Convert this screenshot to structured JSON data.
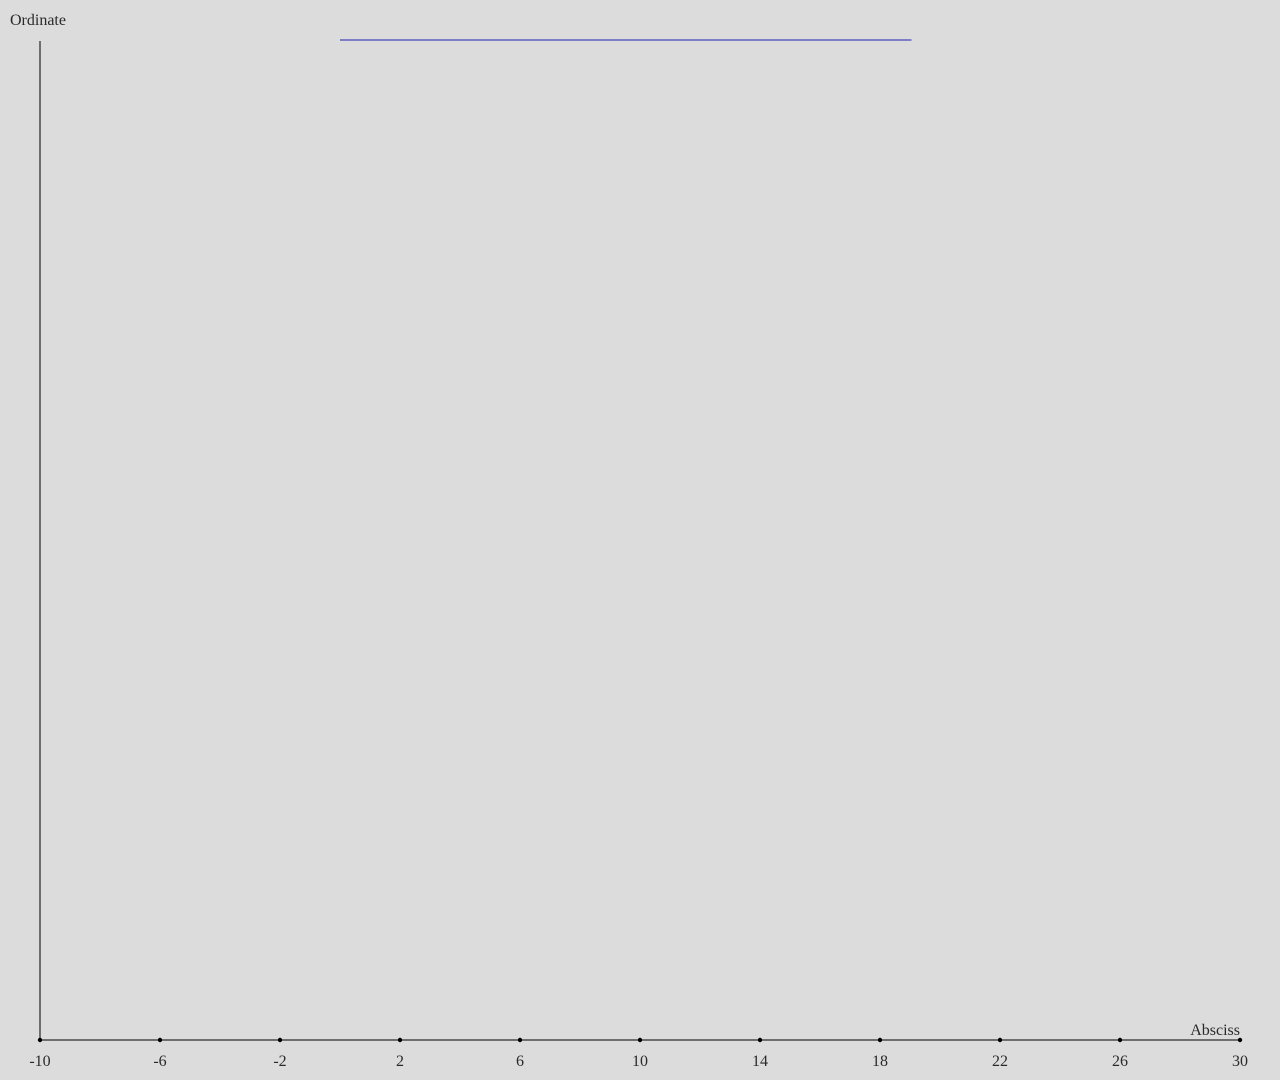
{
  "chart_data": {
    "type": "line",
    "title": "",
    "xlabel": "Absciss",
    "ylabel": "Ordinate",
    "xlim": [
      -10,
      30
    ],
    "ylim": [
      0,
      1
    ],
    "x_ticks": [
      -10,
      -6,
      -2,
      2,
      6,
      10,
      14,
      18,
      22,
      26,
      30
    ],
    "x_tick_labels": [
      "-10",
      "-6",
      "-2",
      "2",
      "6",
      "10",
      "14",
      "18",
      "22",
      "26",
      "30"
    ],
    "grid": false,
    "legend": "none",
    "series": [
      {
        "x": [
          0,
          19.05
        ],
        "y": [
          1,
          1
        ],
        "color": "#1f1fb0"
      }
    ],
    "colors": {
      "background": "#dcdcdc",
      "axis": "#000000",
      "text": "#2a2a2a"
    }
  }
}
